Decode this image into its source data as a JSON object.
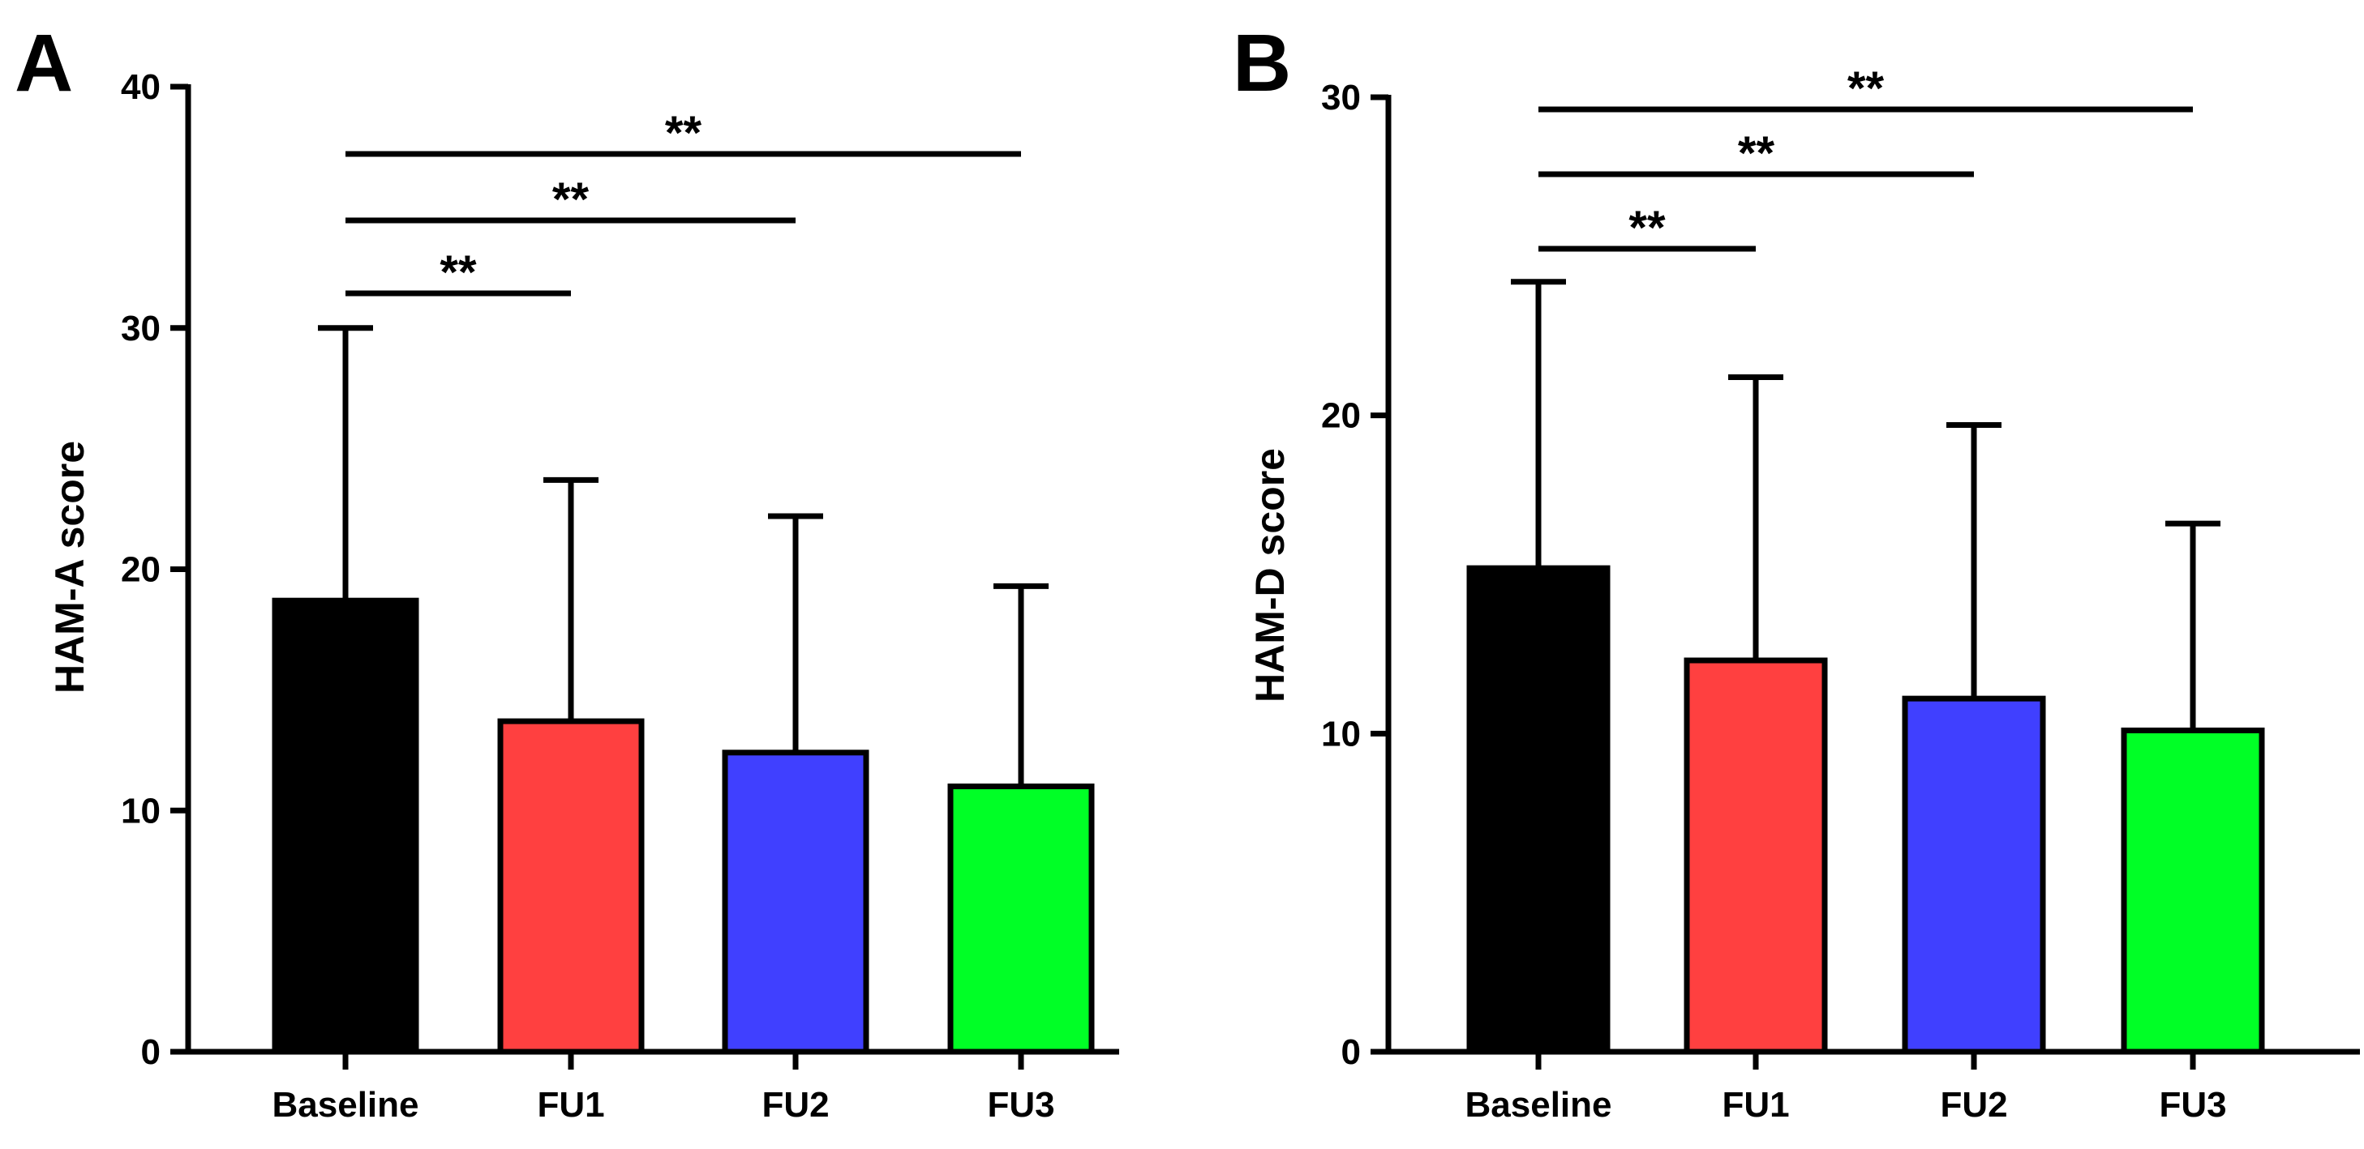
{
  "chart_data": [
    {
      "type": "bar",
      "panel": "A",
      "ylabel": "HAM-A score",
      "xlabel": "",
      "ylim": [
        0,
        40
      ],
      "yticks": [
        "0",
        "10",
        "20",
        "30",
        "40"
      ],
      "categories": [
        "Baseline",
        "FU1",
        "FU2",
        "FU3"
      ],
      "values": [
        18.7,
        13.7,
        12.4,
        11.0
      ],
      "error_upper": [
        30.0,
        23.7,
        22.2,
        19.3
      ],
      "colors": [
        "#000000",
        "#ff4040",
        "#4040ff",
        "#00ff26"
      ],
      "comparisons": [
        {
          "from": "Baseline",
          "to": "FU1",
          "label": "**"
        },
        {
          "from": "Baseline",
          "to": "FU2",
          "label": "**"
        },
        {
          "from": "Baseline",
          "to": "FU3",
          "label": "**"
        }
      ]
    },
    {
      "type": "bar",
      "panel": "B",
      "ylabel": "HAM-D score",
      "xlabel": "",
      "ylim": [
        0,
        30
      ],
      "yticks": [
        "0",
        "10",
        "20",
        "30"
      ],
      "categories": [
        "Baseline",
        "FU1",
        "FU2",
        "FU3"
      ],
      "values": [
        15.2,
        12.3,
        11.1,
        10.1
      ],
      "error_upper": [
        24.2,
        21.2,
        19.7,
        16.6
      ],
      "colors": [
        "#000000",
        "#ff4040",
        "#4040ff",
        "#00ff26"
      ],
      "comparisons": [
        {
          "from": "Baseline",
          "to": "FU1",
          "label": "**"
        },
        {
          "from": "Baseline",
          "to": "FU2",
          "label": "**"
        },
        {
          "from": "Baseline",
          "to": "FU3",
          "label": "**"
        }
      ]
    }
  ]
}
